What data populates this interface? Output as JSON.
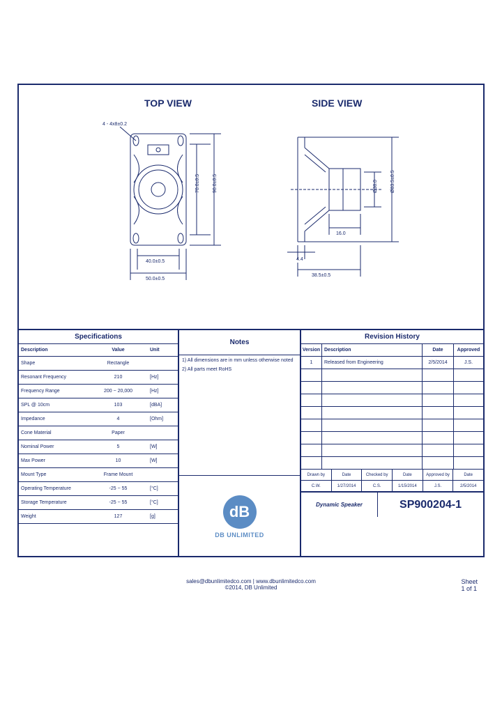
{
  "views": {
    "top_label": "TOP VIEW",
    "side_label": "SIDE VIEW",
    "dimensions": {
      "hole_spec": "4 - 4x8±0.2",
      "height_inner": "70.0±0.5",
      "height_outer": "90.0±0.5",
      "width_inner": "40.0±0.5",
      "width_outer": "50.0±0.5",
      "magnet_dia": "Ø38.0",
      "overall_dia": "Ø83.5±0.5",
      "depth1": "16.0",
      "flange": "4.4",
      "total_depth": "38.5±0.5"
    },
    "colors": {
      "line": "#1a2a6c",
      "fill_light": "#e8ecf5"
    }
  },
  "specifications": {
    "title": "Specifications",
    "columns": [
      "Description",
      "Value",
      "Unit"
    ],
    "rows": [
      {
        "desc": "Shape",
        "value": "Rectangle",
        "unit": ""
      },
      {
        "desc": "Resonant Frequency",
        "value": "210",
        "unit": "[Hz]"
      },
      {
        "desc": "Frequency Range",
        "value": "200 ~ 20,000",
        "unit": "[Hz]"
      },
      {
        "desc": "SPL @ 10cm",
        "value": "103",
        "unit": "[dBA]"
      },
      {
        "desc": "Impedance",
        "value": "4",
        "unit": "[Ohm]"
      },
      {
        "desc": "Cone Material",
        "value": "Paper",
        "unit": ""
      },
      {
        "desc": "Nominal Power",
        "value": "5",
        "unit": "[W]"
      },
      {
        "desc": "Max Power",
        "value": "10",
        "unit": "[W]"
      },
      {
        "desc": "Mount Type",
        "value": "Frame Mount",
        "unit": ""
      },
      {
        "desc": "Operating Temperature",
        "value": "-25 ~ 55",
        "unit": "[°C]"
      },
      {
        "desc": "Storage Temperature",
        "value": "-25 ~ 55",
        "unit": "[°C]"
      },
      {
        "desc": "Weight",
        "value": "127",
        "unit": "[g]"
      }
    ]
  },
  "notes": {
    "title": "Notes",
    "items": [
      "1) All dimensions are in mm unless otherwise noted",
      "2) All parts meet RoHS"
    ]
  },
  "logo": {
    "mark": "dB",
    "name": "DB UNLIMITED"
  },
  "revision": {
    "title": "Revision History",
    "columns": [
      "Version",
      "Description",
      "Date",
      "Approved"
    ],
    "rows": [
      {
        "ver": "1",
        "desc": "Released from Engineering",
        "date": "2/5/2014",
        "appr": "J.S."
      }
    ],
    "empty_rows": 8
  },
  "signatures": {
    "headers": [
      "Drawn by",
      "Date",
      "Checked by",
      "Date",
      "Approved by",
      "Date"
    ],
    "values": [
      "C.W.",
      "1/27/2014",
      "C.S.",
      "1/15/2014",
      "J.S.",
      "2/5/2014"
    ]
  },
  "titleblock": {
    "product_type": "Dynamic Speaker",
    "part_number": "SP900204-1"
  },
  "footer": {
    "contact": "sales@dbunlimitedco.com | www.dbunlimitedco.com",
    "copyright": "©2014, DB Unlimited",
    "sheet_label": "Sheet",
    "sheet_value": "1 of 1"
  }
}
